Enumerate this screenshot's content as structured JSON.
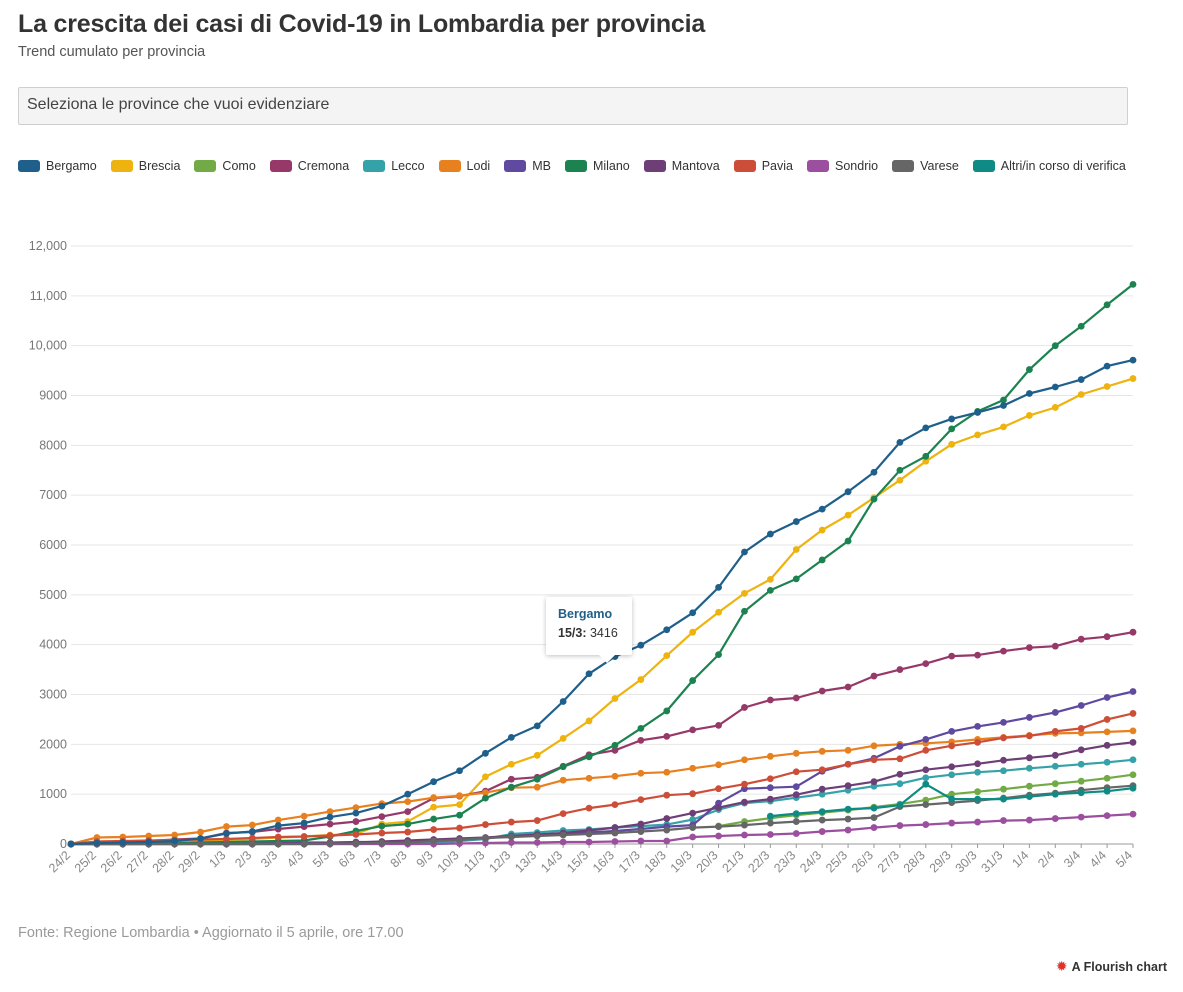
{
  "title": "La crescita dei casi di Covid-19 in Lombardia per provincia",
  "subtitle": "Trend cumulato per provincia",
  "selector_placeholder": "Seleziona le province che vuoi evidenziare",
  "footer": "Fonte: Regione Lombardia • Aggiornato il 5 aprile, ore 17.00",
  "branding": "A Flourish chart",
  "icons": {
    "branding": "flourish-logo-icon"
  },
  "tooltip": {
    "series": "Bergamo",
    "date": "15/3:",
    "value": "3416"
  },
  "chart_data": {
    "type": "line",
    "title": "La crescita dei casi di Covid-19 in Lombardia per provincia",
    "subtitle": "Trend cumulato per provincia",
    "ylim": [
      0,
      12000
    ],
    "yticks": [
      0,
      1000,
      2000,
      3000,
      4000,
      5000,
      6000,
      7000,
      8000,
      9000,
      10000,
      11000,
      12000
    ],
    "ytick_labels": [
      "0",
      "1000",
      "2000",
      "3000",
      "4000",
      "5000",
      "6000",
      "7000",
      "8000",
      "9000",
      "10,000",
      "11,000",
      "12,000"
    ],
    "grid": true,
    "legend_position": "top-left",
    "x": [
      "24/2",
      "25/2",
      "26/2",
      "27/2",
      "28/2",
      "29/2",
      "1/3",
      "2/3",
      "3/3",
      "4/3",
      "5/3",
      "6/3",
      "7/3",
      "8/3",
      "9/3",
      "10/3",
      "11/3",
      "12/3",
      "13/3",
      "14/3",
      "15/3",
      "16/3",
      "17/3",
      "18/3",
      "19/3",
      "20/3",
      "21/3",
      "22/3",
      "23/3",
      "24/3",
      "25/3",
      "26/3",
      "27/3",
      "28/3",
      "29/3",
      "30/3",
      "31/3",
      "1/4",
      "2/4",
      "3/4",
      "4/4",
      "5/4"
    ],
    "series": [
      {
        "name": "Bergamo",
        "color": "#1f5f8b",
        "values": [
          0,
          20,
          30,
          40,
          60,
          110,
          210,
          250,
          370,
          420,
          540,
          620,
          760,
          1000,
          1250,
          1470,
          1820,
          2140,
          2370,
          2860,
          3416,
          3760,
          3990,
          4300,
          4640,
          5150,
          5860,
          6220,
          6470,
          6720,
          7070,
          7460,
          8060,
          8350,
          8530,
          8660,
          8800,
          9040,
          9170,
          9320,
          9590,
          9710
        ]
      },
      {
        "name": "Brescia",
        "color": "#eeb30e",
        "values": [
          0,
          10,
          20,
          30,
          40,
          50,
          80,
          100,
          130,
          150,
          180,
          200,
          400,
          450,
          740,
          790,
          1350,
          1600,
          1780,
          2120,
          2470,
          2920,
          3300,
          3780,
          4250,
          4650,
          5030,
          5310,
          5910,
          6300,
          6600,
          6950,
          7300,
          7680,
          8020,
          8210,
          8370,
          8600,
          8760,
          9020,
          9180,
          9340
        ]
      },
      {
        "name": "Como",
        "color": "#72ab45",
        "values": [
          null,
          null,
          null,
          null,
          null,
          null,
          null,
          null,
          null,
          null,
          null,
          null,
          null,
          null,
          null,
          null,
          null,
          null,
          null,
          null,
          null,
          null,
          null,
          null,
          null,
          360,
          450,
          520,
          580,
          630,
          680,
          740,
          800,
          880,
          1000,
          1050,
          1100,
          1160,
          1210,
          1260,
          1320,
          1390
        ]
      },
      {
        "name": "Cremona",
        "color": "#963868",
        "values": [
          0,
          10,
          30,
          60,
          90,
          110,
          220,
          240,
          300,
          350,
          400,
          450,
          550,
          650,
          920,
          960,
          1060,
          1300,
          1340,
          1560,
          1790,
          1880,
          2080,
          2160,
          2290,
          2380,
          2740,
          2890,
          2930,
          3070,
          3150,
          3370,
          3500,
          3620,
          3770,
          3790,
          3870,
          3940,
          3970,
          4110,
          4160,
          4250
        ]
      },
      {
        "name": "Lecco",
        "color": "#35a1a9",
        "values": [
          0,
          0,
          0,
          0,
          0,
          0,
          0,
          0,
          0,
          0,
          0,
          0,
          10,
          20,
          30,
          60,
          100,
          200,
          230,
          270,
          290,
          330,
          360,
          390,
          490,
          690,
          820,
          860,
          930,
          1000,
          1080,
          1160,
          1210,
          1330,
          1390,
          1440,
          1470,
          1520,
          1560,
          1600,
          1640,
          1690
        ]
      },
      {
        "name": "Lodi",
        "color": "#e7801f",
        "values": [
          0,
          130,
          140,
          160,
          180,
          240,
          350,
          380,
          480,
          560,
          650,
          730,
          810,
          850,
          930,
          970,
          1030,
          1130,
          1140,
          1280,
          1320,
          1360,
          1420,
          1440,
          1520,
          1590,
          1690,
          1760,
          1820,
          1860,
          1880,
          1970,
          2000,
          2020,
          2050,
          2100,
          2140,
          2180,
          2220,
          2230,
          2250,
          2270
        ]
      },
      {
        "name": "MB",
        "color": "#5f4a9f",
        "values": [
          0,
          0,
          0,
          0,
          10,
          10,
          10,
          20,
          20,
          30,
          30,
          40,
          40,
          60,
          80,
          90,
          120,
          150,
          170,
          200,
          230,
          260,
          300,
          350,
          380,
          820,
          1110,
          1130,
          1150,
          1460,
          1600,
          1720,
          1960,
          2100,
          2260,
          2360,
          2440,
          2540,
          2640,
          2780,
          2940,
          3060
        ]
      },
      {
        "name": "Milano",
        "color": "#1c8250",
        "values": [
          0,
          0,
          0,
          10,
          20,
          30,
          40,
          50,
          60,
          70,
          150,
          260,
          360,
          400,
          500,
          580,
          920,
          1140,
          1300,
          1550,
          1750,
          1980,
          2320,
          2670,
          3280,
          3800,
          4670,
          5090,
          5320,
          5700,
          6080,
          6920,
          7500,
          7780,
          8330,
          8680,
          8910,
          9520,
          10000,
          10390,
          10820,
          11230
        ]
      },
      {
        "name": "Mantova",
        "color": "#6e3e77",
        "values": [
          0,
          0,
          0,
          0,
          0,
          0,
          0,
          0,
          10,
          10,
          20,
          30,
          50,
          70,
          90,
          110,
          130,
          160,
          190,
          220,
          270,
          330,
          400,
          510,
          620,
          730,
          840,
          900,
          990,
          1100,
          1170,
          1250,
          1400,
          1490,
          1550,
          1610,
          1680,
          1730,
          1780,
          1890,
          1980,
          2040
        ]
      },
      {
        "name": "Pavia",
        "color": "#cd4e38",
        "values": [
          0,
          50,
          60,
          70,
          80,
          90,
          100,
          120,
          140,
          150,
          170,
          190,
          220,
          240,
          290,
          320,
          390,
          440,
          470,
          610,
          720,
          790,
          890,
          980,
          1010,
          1110,
          1200,
          1310,
          1450,
          1490,
          1600,
          1690,
          1710,
          1880,
          1970,
          2040,
          2130,
          2170,
          2260,
          2320,
          2500,
          2620
        ]
      },
      {
        "name": "Sondrio",
        "color": "#9b4f9e",
        "values": [
          0,
          0,
          0,
          0,
          0,
          0,
          0,
          0,
          0,
          0,
          0,
          0,
          0,
          0,
          0,
          10,
          20,
          30,
          30,
          40,
          40,
          50,
          60,
          60,
          140,
          160,
          180,
          190,
          210,
          250,
          280,
          330,
          370,
          390,
          420,
          440,
          470,
          480,
          510,
          540,
          570,
          600
        ]
      },
      {
        "name": "Varese",
        "color": "#666666",
        "values": [
          0,
          0,
          0,
          0,
          0,
          0,
          0,
          0,
          0,
          0,
          10,
          10,
          20,
          30,
          60,
          80,
          120,
          140,
          160,
          180,
          200,
          220,
          250,
          280,
          330,
          350,
          380,
          420,
          450,
          480,
          500,
          530,
          750,
          790,
          830,
          870,
          920,
          980,
          1020,
          1080,
          1130,
          1170
        ]
      },
      {
        "name": "Altri/in corso di verifica",
        "color": "#0e8b84",
        "values": [
          null,
          null,
          null,
          null,
          null,
          null,
          null,
          null,
          null,
          null,
          null,
          null,
          null,
          null,
          null,
          null,
          null,
          null,
          null,
          null,
          null,
          null,
          null,
          null,
          null,
          null,
          null,
          560,
          610,
          650,
          700,
          720,
          780,
          1200,
          900,
          900,
          900,
          950,
          1000,
          1030,
          1060,
          1120
        ]
      }
    ]
  }
}
